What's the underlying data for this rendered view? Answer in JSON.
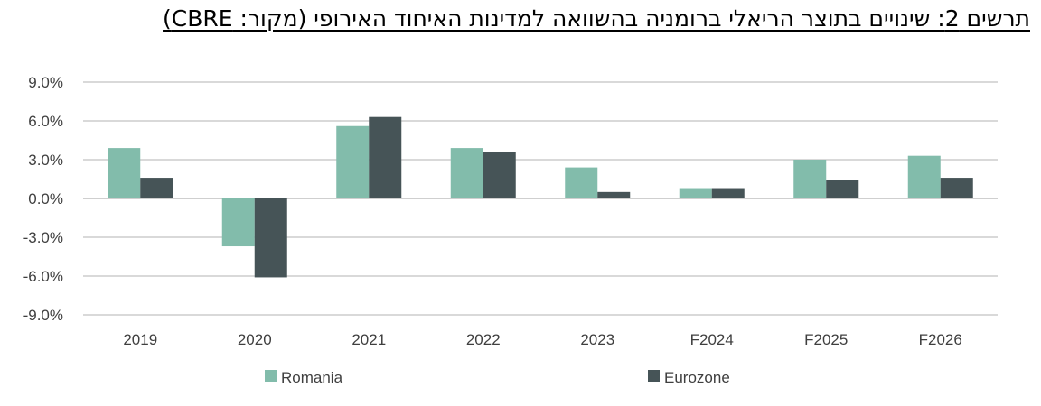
{
  "title": "תרשים 2: שינויים בתוצר הריאלי ברומניה בהשוואה למדינות האיחוד האירופי (מקור: CBRE)",
  "colors": {
    "romania": "#82bcab",
    "eurozone": "#465457",
    "grid": "#d9d9d9",
    "axis": "#cfcfcf"
  },
  "chart_data": {
    "type": "bar",
    "categories": [
      "2019",
      "2020",
      "2021",
      "2022",
      "2023",
      "F2024",
      "F2025",
      "F2026"
    ],
    "series": [
      {
        "name": "Romania",
        "values": [
          3.9,
          -3.7,
          5.6,
          3.9,
          2.4,
          0.8,
          3.0,
          3.3
        ]
      },
      {
        "name": "Eurozone",
        "values": [
          1.6,
          -6.1,
          6.3,
          3.6,
          0.5,
          0.8,
          1.4,
          1.6
        ]
      }
    ],
    "yticks": [
      "9.0%",
      "6.0%",
      "3.0%",
      "0.0%",
      "-3.0%",
      "-6.0%",
      "-9.0%"
    ],
    "ylim": [
      -9,
      9
    ],
    "grid": true,
    "legend_position": "bottom"
  }
}
